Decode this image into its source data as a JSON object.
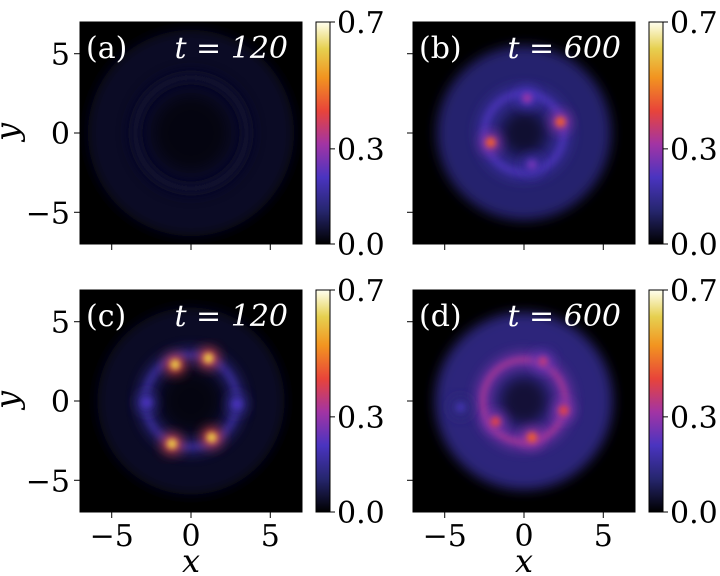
{
  "chart_data": {
    "type": "heatmap",
    "colormap": "CMRmap",
    "axis_label_x": "x",
    "axis_label_y": "y",
    "xlim": [
      -7,
      7
    ],
    "ylim": [
      -7,
      7
    ],
    "x_ticks": [
      "−5",
      "0",
      "5"
    ],
    "y_ticks": [
      "5",
      "0",
      "−5"
    ],
    "colorbar": {
      "min": 0.0,
      "max": 0.7,
      "tick_labels": [
        "0.7",
        "0.3",
        "0.0"
      ]
    },
    "panels": [
      {
        "label": "(a)",
        "time_label": "t = 120",
        "time": 120,
        "peaks": [],
        "ring_radius": 3.5,
        "ring_intensity": 0.04,
        "background": 0.02
      },
      {
        "label": "(b)",
        "time_label": "t = 600",
        "time": 600,
        "peaks": [
          {
            "x": -2.1,
            "y": -0.6,
            "intensity": 0.45
          },
          {
            "x": 2.3,
            "y": 0.7,
            "intensity": 0.45
          },
          {
            "x": 0.2,
            "y": 2.2,
            "intensity": 0.3
          },
          {
            "x": 0.5,
            "y": -2.0,
            "intensity": 0.25
          }
        ],
        "ring_radius": 2.5,
        "ring_intensity": 0.18,
        "background": 0.06
      },
      {
        "label": "(c)",
        "time_label": "t = 120",
        "time": 120,
        "peaks": [
          {
            "x": -1.0,
            "y": 2.3,
            "intensity": 0.6
          },
          {
            "x": 1.1,
            "y": 2.7,
            "intensity": 0.6
          },
          {
            "x": -1.2,
            "y": -2.7,
            "intensity": 0.6
          },
          {
            "x": 1.3,
            "y": -2.3,
            "intensity": 0.6
          },
          {
            "x": -2.8,
            "y": -0.1,
            "intensity": 0.2
          },
          {
            "x": 2.9,
            "y": -0.2,
            "intensity": 0.2
          }
        ],
        "ring_radius": 2.9,
        "ring_intensity": 0.14,
        "background": 0.02
      },
      {
        "label": "(d)",
        "time_label": "t = 600",
        "time": 600,
        "peaks": [
          {
            "x": -1.8,
            "y": -1.3,
            "intensity": 0.4
          },
          {
            "x": 2.5,
            "y": -0.6,
            "intensity": 0.4
          },
          {
            "x": 1.2,
            "y": 2.5,
            "intensity": 0.35
          },
          {
            "x": 0.5,
            "y": -2.3,
            "intensity": 0.45
          },
          {
            "x": -4.0,
            "y": -0.4,
            "intensity": 0.18
          }
        ],
        "ring_radius": 2.6,
        "ring_intensity": 0.28,
        "background": 0.07
      }
    ]
  }
}
